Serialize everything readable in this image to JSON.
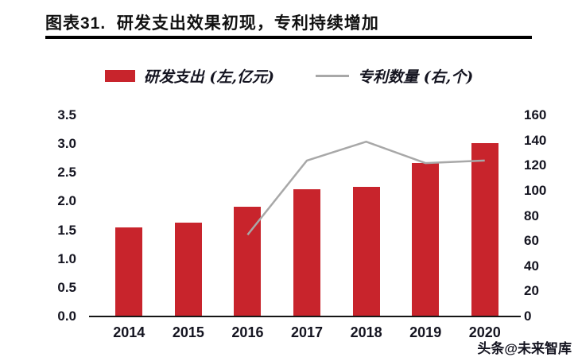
{
  "header": {
    "title": "图表31.  研发支出效果初现，专利持续增加"
  },
  "legend": {
    "bar_label": "研发支出 (左,亿元)",
    "line_label": "专利数量 (右,个)"
  },
  "watermark": "头条@未来智库",
  "colors": {
    "bar": "#C8242C",
    "line": "#A8A8A8",
    "title_text": "#111111",
    "axis_text": "#141420",
    "divider": "#000000"
  },
  "chart_data": {
    "type": "bar",
    "subtype": "bar+line combo, dual axis",
    "title": "图表31. 研发支出效果初现，专利持续增加",
    "categories": [
      "2014",
      "2015",
      "2016",
      "2017",
      "2018",
      "2019",
      "2020"
    ],
    "series": [
      {
        "name": "研发支出 (左,亿元)",
        "type": "bar",
        "axis": "left",
        "values": [
          1.55,
          1.63,
          1.91,
          2.21,
          2.26,
          2.67,
          3.01
        ]
      },
      {
        "name": "专利数量 (右,个)",
        "type": "line",
        "axis": "right",
        "values": [
          null,
          null,
          65,
          124,
          139,
          122,
          124
        ]
      }
    ],
    "left_axis": {
      "min": 0.0,
      "max": 3.5,
      "step": 0.5,
      "ticks": [
        "3.5",
        "3.0",
        "2.5",
        "2.0",
        "1.5",
        "1.0",
        "0.5",
        "0.0"
      ]
    },
    "right_axis": {
      "min": 0,
      "max": 160,
      "step": 20,
      "ticks": [
        "160",
        "140",
        "120",
        "100",
        "80",
        "60",
        "40",
        "20",
        "0"
      ]
    },
    "grid": false,
    "legend_position": "top-center",
    "xlabel": "",
    "ylabel_left": "亿元",
    "ylabel_right": "个"
  }
}
